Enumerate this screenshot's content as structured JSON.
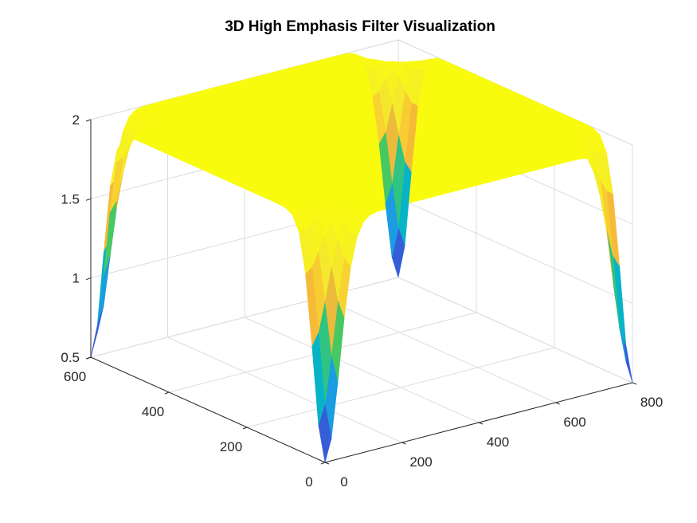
{
  "chart_data": {
    "type": "surface",
    "title": "3D High Emphasis Filter Visualization",
    "xlabel": "",
    "ylabel": "",
    "zlabel": "",
    "x_ticks": [
      0,
      200,
      400,
      600,
      800
    ],
    "y_ticks": [
      0,
      200,
      400,
      600
    ],
    "z_ticks": [
      0.5,
      1,
      1.5,
      2
    ],
    "xlim": [
      0,
      800
    ],
    "ylim": [
      0,
      600
    ],
    "zlim": [
      0.5,
      2
    ],
    "grid": true,
    "colormap": "parula",
    "surface": {
      "plateau_value": 2,
      "corner_minimum": 0.5,
      "corners": [
        [
          0,
          0
        ],
        [
          800,
          0
        ],
        [
          0,
          600
        ],
        [
          800,
          600
        ]
      ],
      "x_range": [
        0,
        800
      ],
      "y_range": [
        0,
        600
      ]
    }
  }
}
